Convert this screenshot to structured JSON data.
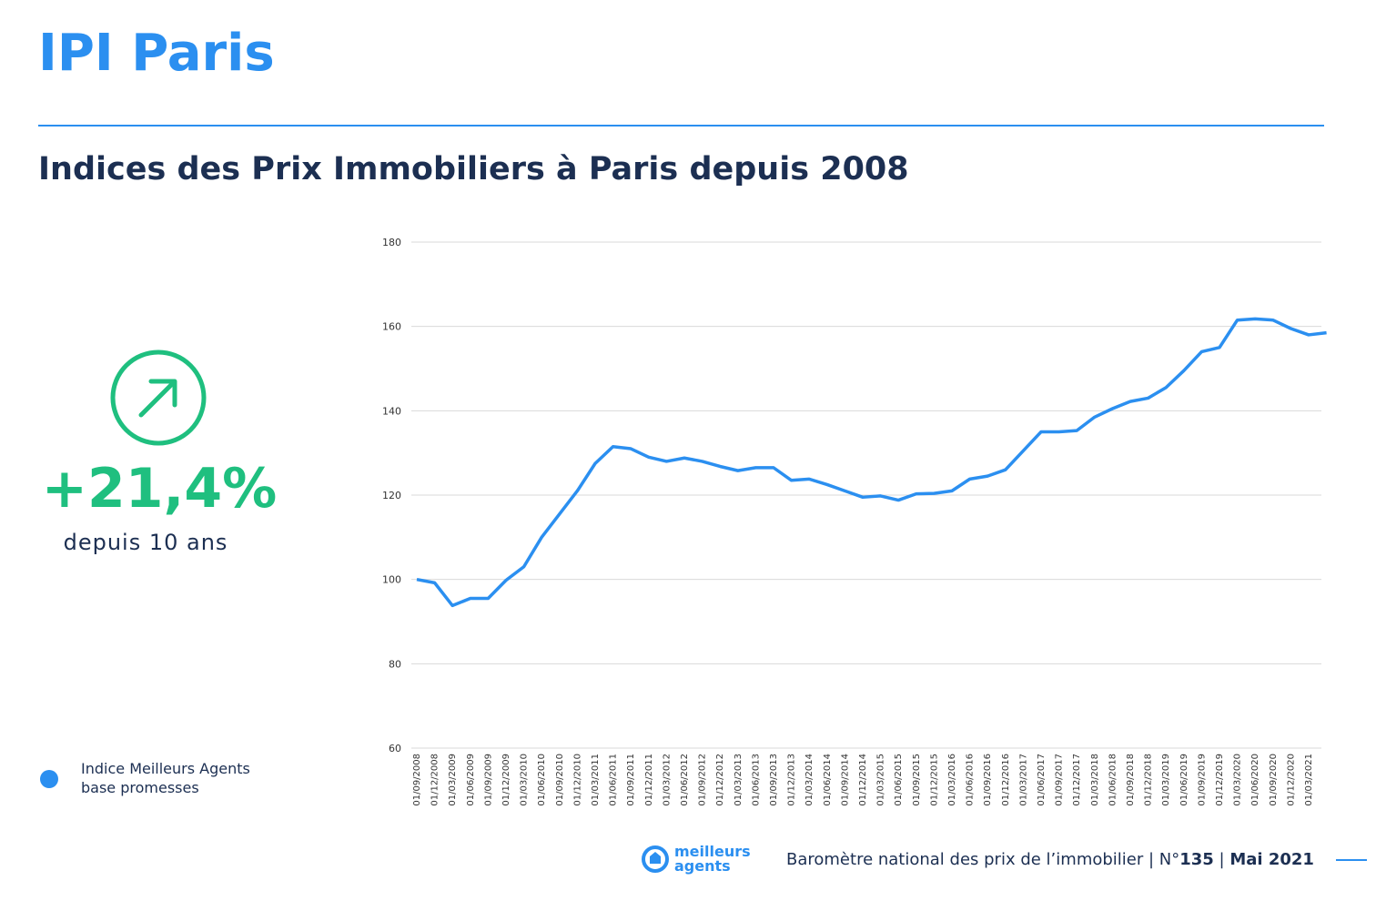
{
  "header": {
    "title": "IPI Paris",
    "subtitle": "Indices des Prix Immobiliers à Paris depuis 2008"
  },
  "highlight": {
    "value": "+21,4%",
    "caption": "depuis 10 ans"
  },
  "chart_data": {
    "type": "line",
    "categories": [
      "01/09/2008",
      "01/12/2008",
      "01/03/2009",
      "01/06/2009",
      "01/09/2009",
      "01/12/2009",
      "01/03/2010",
      "01/06/2010",
      "01/09/2010",
      "01/12/2010",
      "01/03/2011",
      "01/06/2011",
      "01/09/2011",
      "01/12/2011",
      "01/03/2012",
      "01/06/2012",
      "01/09/2012",
      "01/12/2012",
      "01/03/2013",
      "01/06/2013",
      "01/09/2013",
      "01/12/2013",
      "01/03/2014",
      "01/06/2014",
      "01/09/2014",
      "01/12/2014",
      "01/03/2015",
      "01/06/2015",
      "01/09/2015",
      "01/12/2015",
      "01/03/2016",
      "01/06/2016",
      "01/09/2016",
      "01/12/2016",
      "01/03/2017",
      "01/06/2017",
      "01/09/2017",
      "01/12/2017",
      "01/03/2018",
      "01/06/2018",
      "01/09/2018",
      "01/12/2018",
      "01/03/2019",
      "01/06/2019",
      "01/09/2019",
      "01/12/2019",
      "01/03/2020",
      "01/06/2020",
      "01/09/2020",
      "01/12/2020",
      "01/03/2021",
      null
    ],
    "series": [
      {
        "name": "Indice Meilleurs Agents base promesses",
        "color": "#2b8ff0",
        "values": [
          100,
          99.2,
          93.8,
          95.5,
          95.5,
          99.8,
          103,
          110,
          115.5,
          121,
          127.5,
          131.5,
          131,
          129,
          128,
          128.8,
          128,
          126.8,
          125.8,
          126.5,
          126.5,
          123.5,
          123.8,
          122.5,
          121,
          119.5,
          119.8,
          118.8,
          120.3,
          120.4,
          121,
          123.8,
          124.5,
          126,
          130.5,
          135,
          135,
          135.3,
          138.5,
          140.5,
          142.2,
          143,
          145.5,
          149.5,
          154,
          155,
          161.5,
          161.8,
          161.5,
          159.5,
          158,
          158.5
        ]
      }
    ],
    "ylim": [
      60,
      180
    ],
    "yticks": [
      60,
      80,
      100,
      120,
      140,
      160,
      180
    ],
    "grid": true
  },
  "footer": {
    "logo_line1": "meilleurs",
    "logo_line2": "agents",
    "text": "Baromètre national des prix de l’immobilier | N°",
    "issue": "135",
    "separator": " | ",
    "date": "Mai 2021"
  }
}
